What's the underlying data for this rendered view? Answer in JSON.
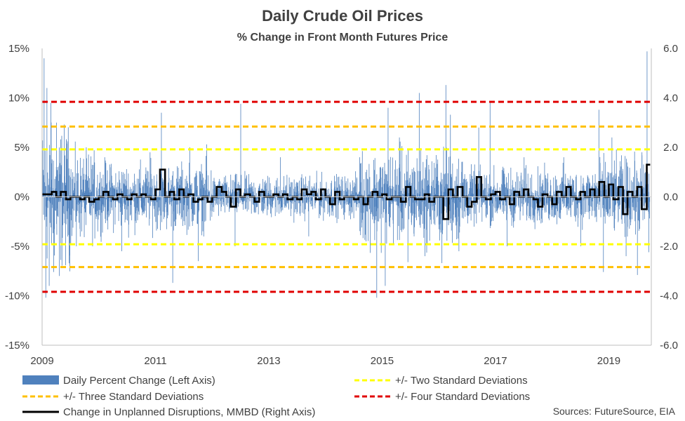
{
  "chart_data": {
    "type": "bar",
    "title": "Daily Crude Oil Prices",
    "subtitle": "% Change in Front Month Futures Price",
    "left_axis": {
      "min": -15,
      "max": 15,
      "step": 5,
      "tick_labels": [
        "15%",
        "10%",
        "5%",
        "0%",
        "-5%",
        "-10%",
        "-15%"
      ]
    },
    "right_axis": {
      "min": -6,
      "max": 6,
      "step": 2,
      "tick_labels": [
        "6.0",
        "4.0",
        "2.0",
        "0.0",
        "-2.0",
        "-4.0",
        "-6.0"
      ]
    },
    "x_axis": {
      "min": 2009.0,
      "max": 2019.75,
      "tick_labels": [
        "2009",
        "2011",
        "2013",
        "2015",
        "2017",
        "2019"
      ],
      "tick_years": [
        2009,
        2011,
        2013,
        2015,
        2017,
        2019
      ]
    },
    "grid": false,
    "legend_position": "bottom",
    "series": [
      {
        "name": "Daily Percent Change (Left Axis)",
        "kind": "bar",
        "axis": "left",
        "color": "#4f81bd",
        "spikes": [
          {
            "x": 2009.03,
            "y": 14.0
          },
          {
            "x": 2009.06,
            "y": -10.2
          },
          {
            "x": 2009.08,
            "y": 11.0
          },
          {
            "x": 2009.12,
            "y": -9.0
          },
          {
            "x": 2009.15,
            "y": 9.5
          },
          {
            "x": 2009.2,
            "y": -7.6
          },
          {
            "x": 2009.25,
            "y": 7.5
          },
          {
            "x": 2009.3,
            "y": -8.0
          },
          {
            "x": 2009.45,
            "y": 5.6
          },
          {
            "x": 2009.6,
            "y": -5.0
          },
          {
            "x": 2010.1,
            "y": 4.0
          },
          {
            "x": 2010.4,
            "y": -5.5
          },
          {
            "x": 2010.9,
            "y": 4.5
          },
          {
            "x": 2011.1,
            "y": 8.5
          },
          {
            "x": 2011.3,
            "y": -8.7
          },
          {
            "x": 2011.6,
            "y": 5.0
          },
          {
            "x": 2011.75,
            "y": -6.5
          },
          {
            "x": 2011.9,
            "y": 5.3
          },
          {
            "x": 2012.5,
            "y": 9.4
          },
          {
            "x": 2012.4,
            "y": -5.0
          },
          {
            "x": 2013.2,
            "y": 4.0
          },
          {
            "x": 2013.7,
            "y": -4.0
          },
          {
            "x": 2014.6,
            "y": 4.0
          },
          {
            "x": 2014.9,
            "y": -10.2
          },
          {
            "x": 2015.1,
            "y": 9.0
          },
          {
            "x": 2015.05,
            "y": -9.0
          },
          {
            "x": 2015.3,
            "y": 6.0
          },
          {
            "x": 2015.45,
            "y": -6.6
          },
          {
            "x": 2015.65,
            "y": 10.5
          },
          {
            "x": 2015.75,
            "y": -6.0
          },
          {
            "x": 2016.05,
            "y": -6.7
          },
          {
            "x": 2016.12,
            "y": 11.3
          },
          {
            "x": 2016.2,
            "y": 8.3
          },
          {
            "x": 2016.35,
            "y": -5.5
          },
          {
            "x": 2016.7,
            "y": 7.0
          },
          {
            "x": 2016.9,
            "y": 9.5
          },
          {
            "x": 2017.2,
            "y": -5.0
          },
          {
            "x": 2017.5,
            "y": 4.0
          },
          {
            "x": 2018.2,
            "y": 4.0
          },
          {
            "x": 2018.5,
            "y": -5.0
          },
          {
            "x": 2018.82,
            "y": 8.8
          },
          {
            "x": 2018.9,
            "y": -7.6
          },
          {
            "x": 2019.05,
            "y": 6.0
          },
          {
            "x": 2019.3,
            "y": -6.0
          },
          {
            "x": 2019.5,
            "y": -7.9
          },
          {
            "x": 2019.58,
            "y": 4.5
          },
          {
            "x": 2019.67,
            "y": 14.7
          },
          {
            "x": 2019.7,
            "y": -5.6
          }
        ]
      },
      {
        "name": "Change in Unplanned Disruptions, MMBD (Right Axis)",
        "kind": "step-line",
        "axis": "right",
        "color": "#000000",
        "x": [
          2009.0,
          2009.17,
          2009.25,
          2009.33,
          2009.42,
          2009.5,
          2009.58,
          2009.67,
          2009.75,
          2009.83,
          2009.92,
          2010.0,
          2010.08,
          2010.17,
          2010.25,
          2010.33,
          2010.42,
          2010.5,
          2010.58,
          2010.67,
          2010.75,
          2010.83,
          2010.92,
          2011.0,
          2011.08,
          2011.17,
          2011.25,
          2011.33,
          2011.42,
          2011.5,
          2011.58,
          2011.67,
          2011.75,
          2011.83,
          2011.92,
          2012.0,
          2012.08,
          2012.17,
          2012.25,
          2012.33,
          2012.42,
          2012.5,
          2012.58,
          2012.67,
          2012.75,
          2012.83,
          2012.92,
          2013.0,
          2013.08,
          2013.17,
          2013.25,
          2013.33,
          2013.42,
          2013.5,
          2013.58,
          2013.67,
          2013.75,
          2013.83,
          2013.92,
          2014.0,
          2014.08,
          2014.17,
          2014.25,
          2014.33,
          2014.42,
          2014.5,
          2014.58,
          2014.67,
          2014.75,
          2014.83,
          2014.92,
          2015.0,
          2015.08,
          2015.17,
          2015.25,
          2015.33,
          2015.42,
          2015.5,
          2015.58,
          2015.67,
          2015.75,
          2015.83,
          2015.92,
          2016.0,
          2016.08,
          2016.17,
          2016.25,
          2016.33,
          2016.42,
          2016.5,
          2016.58,
          2016.67,
          2016.75,
          2016.83,
          2016.92,
          2017.0,
          2017.08,
          2017.17,
          2017.25,
          2017.33,
          2017.42,
          2017.5,
          2017.58,
          2017.67,
          2017.75,
          2017.83,
          2017.92,
          2018.0,
          2018.08,
          2018.17,
          2018.25,
          2018.33,
          2018.42,
          2018.5,
          2018.58,
          2018.67,
          2018.75,
          2018.83,
          2018.92,
          2019.0,
          2019.08,
          2019.17,
          2019.25,
          2019.33,
          2019.42,
          2019.5,
          2019.58,
          2019.67
        ],
        "values": [
          0.1,
          0.2,
          0.0,
          0.2,
          -0.1,
          0.0,
          0.0,
          -0.1,
          0.0,
          -0.2,
          -0.1,
          0.0,
          0.2,
          0.0,
          -0.1,
          0.1,
          0.0,
          -0.1,
          0.1,
          0.0,
          0.1,
          0.0,
          -0.1,
          0.3,
          1.1,
          0.0,
          0.2,
          -0.1,
          0.3,
          0.0,
          0.1,
          -0.2,
          -0.1,
          0.0,
          -0.2,
          0.0,
          0.4,
          0.2,
          0.0,
          -0.4,
          0.3,
          0.0,
          0.1,
          0.0,
          -0.2,
          0.2,
          0.0,
          0.0,
          0.1,
          0.0,
          0.1,
          -0.1,
          0.0,
          -0.1,
          0.3,
          0.1,
          0.2,
          -0.1,
          0.3,
          0.0,
          -0.3,
          0.2,
          -0.1,
          0.0,
          0.0,
          -0.1,
          0.0,
          -0.3,
          0.0,
          0.2,
          0.0,
          0.1,
          -0.1,
          0.0,
          0.0,
          -0.2,
          0.4,
          0.0,
          -0.1,
          -0.1,
          0.1,
          -0.2,
          0.0,
          0.0,
          -0.9,
          0.3,
          0.0,
          0.4,
          0.0,
          -0.4,
          -0.2,
          0.8,
          0.0,
          -0.1,
          0.1,
          0.2,
          -0.1,
          0.0,
          -0.3,
          0.2,
          0.0,
          0.3,
          0.0,
          -0.1,
          -0.4,
          0.1,
          0.0,
          -0.3,
          0.2,
          0.0,
          0.4,
          0.0,
          -0.1,
          0.2,
          0.0,
          0.3,
          0.0,
          0.6,
          0.0,
          0.5,
          -0.1,
          0.4,
          -0.7,
          0.2,
          0.0,
          0.4,
          -0.5,
          1.3
        ]
      },
      {
        "name": "+/- Two Standard Deviations",
        "kind": "hline-pair",
        "axis": "left",
        "color": "#ffff00",
        "value": 4.8
      },
      {
        "name": "+/- Three Standard Deviations",
        "kind": "hline-pair",
        "axis": "left",
        "color": "#ffc000",
        "value": 7.1
      },
      {
        "name": "+/- Four Standard Deviations",
        "kind": "hline-pair",
        "axis": "left",
        "color": "#e00000",
        "value": 9.6
      }
    ],
    "legend": [
      {
        "label": "Daily Percent Change (Left Axis)",
        "style": "bar",
        "color": "#4f81bd"
      },
      {
        "label": "+/- Two Standard Deviations",
        "style": "dash",
        "color": "#ffff00"
      },
      {
        "label": "+/- Three Standard Deviations",
        "style": "dash",
        "color": "#ffc000"
      },
      {
        "label": "+/- Four Standard Deviations",
        "style": "dash",
        "color": "#e00000"
      },
      {
        "label": "Change in Unplanned Disruptions, MMBD (Right Axis)",
        "style": "line",
        "color": "#000000"
      }
    ],
    "source": "Sources: FutureSource, EIA"
  }
}
